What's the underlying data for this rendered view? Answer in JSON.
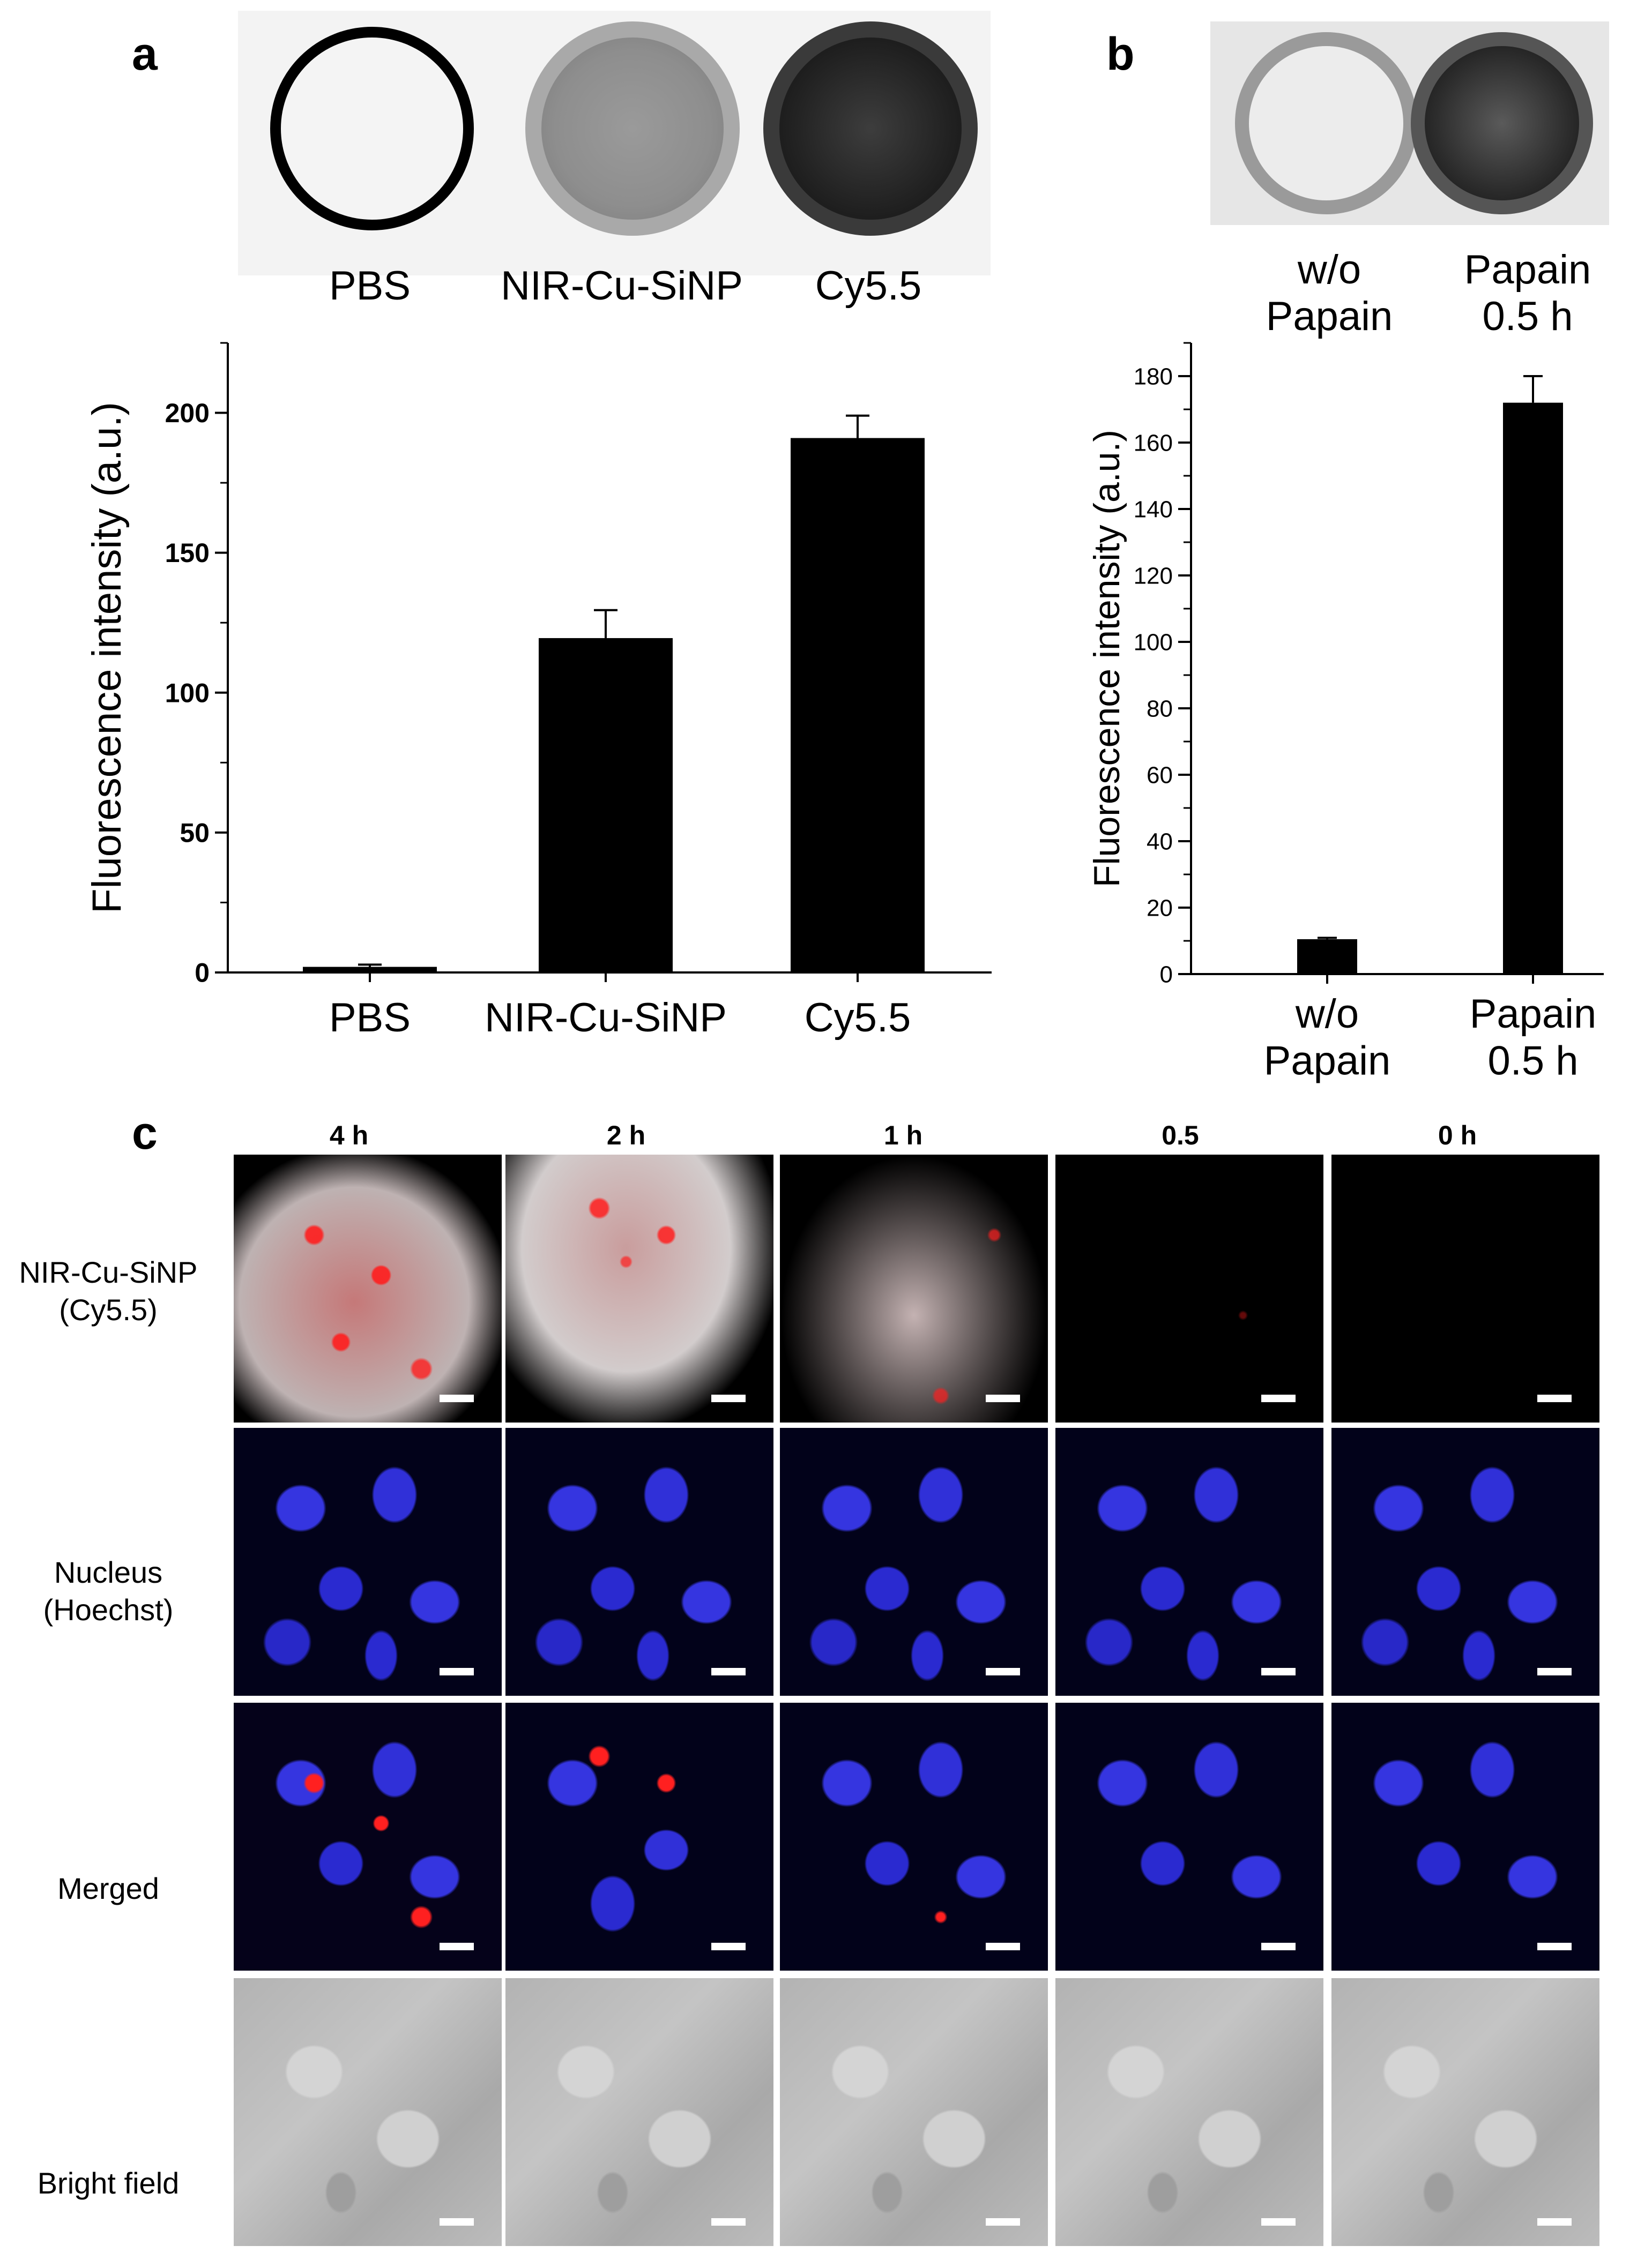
{
  "panels": {
    "a": {
      "letter": "a",
      "photo_labels": [
        "PBS",
        "NIR-Cu-SiNP",
        "Cy5.5"
      ]
    },
    "b": {
      "letter": "b",
      "photo_labels": [
        "w/o\nPapain",
        "Papain\n0.5 h"
      ]
    },
    "c": {
      "letter": "c",
      "columns": [
        "4 h",
        "2 h",
        "1 h",
        "0.5",
        "0 h"
      ],
      "rows": [
        "NIR-Cu-SiNP\n(Cy5.5)",
        "Nucleus\n(Hoechst)",
        "Merged",
        "Bright field"
      ]
    }
  },
  "chart_data": [
    {
      "type": "bar",
      "categories": [
        "PBS",
        "NIR-Cu-SiNP",
        "Cy5.5"
      ],
      "values": [
        2,
        119.5,
        191
      ],
      "errors": [
        0.8,
        10,
        8
      ],
      "title": "",
      "xlabel": "",
      "ylabel": "Fluorescence intensity (a.u.)",
      "ylim": [
        0,
        225
      ],
      "yticks": [
        0,
        50,
        100,
        150,
        200
      ],
      "bar_color": "#000000"
    },
    {
      "type": "bar",
      "categories": [
        "w/o\nPapain",
        "Papain\n0.5 h"
      ],
      "values": [
        10.5,
        172
      ],
      "errors": [
        0.4,
        8
      ],
      "title": "",
      "xlabel": "",
      "ylabel": "Fluorescence intensity (a.u.)",
      "ylim": [
        0,
        190
      ],
      "yticks": [
        0,
        20,
        40,
        60,
        80,
        100,
        120,
        140,
        160,
        180
      ],
      "bar_color": "#000000"
    }
  ],
  "colors": {
    "cy55_signal": "#ff1a1a",
    "hoechst_signal": "#2a2aff",
    "background_dark": "#000000",
    "brightfield": "#b8b8b8"
  }
}
